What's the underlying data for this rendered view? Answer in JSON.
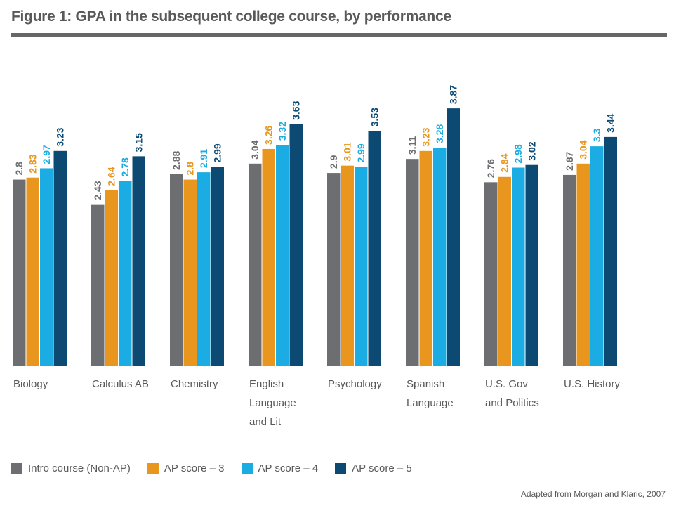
{
  "header": {
    "title": "Figure 1: GPA in the subsequent college course, by performance"
  },
  "footer": {
    "source": "Adapted from Morgan and Klaric, 2007"
  },
  "chart_data": {
    "type": "bar",
    "title": "Figure 1: GPA in the subsequent college course, by performance",
    "xlabel": "",
    "ylabel": "",
    "grid": false,
    "legend_position": "bottom-left",
    "categories": [
      [
        "Biology"
      ],
      [
        "Calculus AB"
      ],
      [
        "Chemistry"
      ],
      [
        "English",
        "Language",
        "and Lit"
      ],
      [
        "Psychology"
      ],
      [
        "Spanish",
        "Language"
      ],
      [
        "U.S. Gov",
        "and Politics"
      ],
      [
        "U.S. History"
      ]
    ],
    "series": [
      {
        "name": "Intro course (Non-AP)",
        "color": "#6d6e71",
        "values": [
          2.8,
          2.43,
          2.88,
          3.04,
          2.9,
          3.11,
          2.76,
          2.87
        ]
      },
      {
        "name": "AP score – 3",
        "color": "#e8961e",
        "values": [
          2.83,
          2.64,
          2.8,
          3.26,
          3.01,
          3.23,
          2.84,
          3.04
        ]
      },
      {
        "name": "AP score – 4",
        "color": "#1aace2",
        "values": [
          2.97,
          2.78,
          2.91,
          3.32,
          2.99,
          3.28,
          2.98,
          3.3
        ]
      },
      {
        "name": "AP score – 5",
        "color": "#0c4a73",
        "values": [
          3.23,
          3.15,
          2.99,
          3.63,
          3.53,
          3.87,
          3.02,
          3.44
        ]
      }
    ]
  }
}
